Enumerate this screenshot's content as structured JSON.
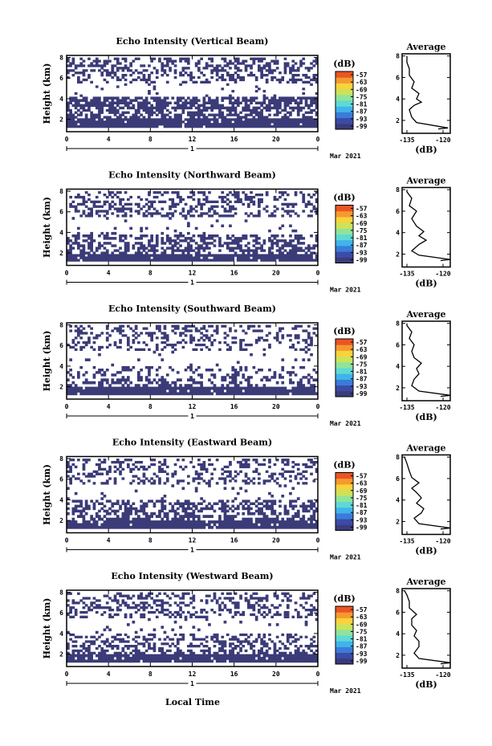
{
  "colors": {
    "echo": "#3b3b78",
    "colorbar": [
      "#3b3b78",
      "#3b4ba8",
      "#3a7cd8",
      "#41b3ec",
      "#5fd9d5",
      "#8fe49a",
      "#cde25a",
      "#f7d33c",
      "#f59a2e",
      "#ec5424"
    ]
  },
  "shared": {
    "x_ticks": [
      "0",
      "4",
      "8",
      "12",
      "16",
      "20",
      "0"
    ],
    "x_range": [
      0,
      24
    ],
    "day_label": "1",
    "month_label": "Mar 2021",
    "y_label": "Height (km)",
    "y_ticks": [
      "2",
      "4",
      "6",
      "8"
    ],
    "y_range": [
      0.8,
      8.2
    ],
    "cb_unit": "(dB)",
    "cb_ticks": [
      "-57",
      "-63",
      "-69",
      "-75",
      "-81",
      "-87",
      "-93",
      "-99"
    ],
    "avg_title": "Average",
    "avg_xticks": [
      "-135",
      "-120"
    ],
    "avg_xrange": [
      -137,
      -117
    ],
    "avg_xlabel": "(dB)",
    "avg_yticks": [
      "2",
      "4",
      "6",
      "8"
    ],
    "x_axis_label": "Local Time"
  },
  "chart_data": [
    {
      "type": "heatmap",
      "title": "Echo Intensity (Vertical Beam)",
      "echo_bands": [
        {
          "bottom": 1.2,
          "top": 2.1,
          "coverage": 0.95
        },
        {
          "bottom": 2.1,
          "top": 3.0,
          "coverage": 0.55
        },
        {
          "bottom": 3.0,
          "top": 4.2,
          "coverage": 0.7
        },
        {
          "bottom": 4.2,
          "top": 5.5,
          "coverage": 0.05
        },
        {
          "bottom": 5.5,
          "top": 8.0,
          "coverage": 0.4
        }
      ],
      "average_profile": [
        [
          -122,
          1.2
        ],
        [
          -118,
          1.3
        ],
        [
          -131,
          1.8
        ],
        [
          -133,
          2.3
        ],
        [
          -134,
          3.0
        ],
        [
          -132,
          3.4
        ],
        [
          -129,
          3.7
        ],
        [
          -131,
          4.0
        ],
        [
          -130,
          4.5
        ],
        [
          -133,
          5.0
        ],
        [
          -132,
          5.6
        ],
        [
          -134,
          6.2
        ],
        [
          -134,
          6.8
        ],
        [
          -135,
          7.4
        ],
        [
          -135,
          8.0
        ]
      ]
    },
    {
      "type": "heatmap",
      "title": "Echo Intensity (Northward Beam)",
      "echo_bands": [
        {
          "bottom": 1.2,
          "top": 1.9,
          "coverage": 0.95
        },
        {
          "bottom": 1.9,
          "top": 2.6,
          "coverage": 0.5
        },
        {
          "bottom": 2.6,
          "top": 3.8,
          "coverage": 0.5
        },
        {
          "bottom": 3.8,
          "top": 5.5,
          "coverage": 0.08
        },
        {
          "bottom": 5.5,
          "top": 8.0,
          "coverage": 0.35
        }
      ],
      "average_profile": [
        [
          -121,
          1.4
        ],
        [
          -117,
          1.5
        ],
        [
          -130,
          1.9
        ],
        [
          -133,
          2.3
        ],
        [
          -130,
          2.9
        ],
        [
          -127,
          3.3
        ],
        [
          -130,
          3.7
        ],
        [
          -128,
          4.1
        ],
        [
          -131,
          4.6
        ],
        [
          -133,
          5.3
        ],
        [
          -131,
          6.0
        ],
        [
          -134,
          6.5
        ],
        [
          -133,
          7.2
        ],
        [
          -135,
          7.8
        ],
        [
          -135,
          8.0
        ]
      ]
    },
    {
      "type": "heatmap",
      "title": "Echo Intensity (Southward Beam)",
      "echo_bands": [
        {
          "bottom": 1.2,
          "top": 2.0,
          "coverage": 0.95
        },
        {
          "bottom": 2.0,
          "top": 2.8,
          "coverage": 0.45
        },
        {
          "bottom": 2.8,
          "top": 4.0,
          "coverage": 0.25
        },
        {
          "bottom": 4.0,
          "top": 5.5,
          "coverage": 0.05
        },
        {
          "bottom": 5.5,
          "top": 8.0,
          "coverage": 0.3
        }
      ],
      "average_profile": [
        [
          -121,
          1.2
        ],
        [
          -117,
          1.3
        ],
        [
          -130,
          1.7
        ],
        [
          -133,
          2.2
        ],
        [
          -132,
          2.8
        ],
        [
          -130,
          3.3
        ],
        [
          -131,
          3.8
        ],
        [
          -129,
          4.3
        ],
        [
          -132,
          4.8
        ],
        [
          -133,
          5.4
        ],
        [
          -132,
          6.0
        ],
        [
          -134,
          6.6
        ],
        [
          -133,
          7.2
        ],
        [
          -135,
          7.8
        ],
        [
          -135,
          8.0
        ]
      ]
    },
    {
      "type": "heatmap",
      "title": "Echo Intensity (Eastward Beam)",
      "echo_bands": [
        {
          "bottom": 1.2,
          "top": 2.0,
          "coverage": 0.95
        },
        {
          "bottom": 2.0,
          "top": 2.8,
          "coverage": 0.5
        },
        {
          "bottom": 2.8,
          "top": 4.0,
          "coverage": 0.45
        },
        {
          "bottom": 4.0,
          "top": 5.5,
          "coverage": 0.06
        },
        {
          "bottom": 5.5,
          "top": 8.0,
          "coverage": 0.3
        }
      ],
      "average_profile": [
        [
          -121,
          1.3
        ],
        [
          -117,
          1.4
        ],
        [
          -130,
          1.8
        ],
        [
          -132,
          2.3
        ],
        [
          -129,
          2.8
        ],
        [
          -128,
          3.2
        ],
        [
          -131,
          3.7
        ],
        [
          -129,
          4.2
        ],
        [
          -131,
          4.7
        ],
        [
          -133,
          5.1
        ],
        [
          -130,
          5.6
        ],
        [
          -133,
          6.1
        ],
        [
          -134,
          6.7
        ],
        [
          -135,
          7.4
        ],
        [
          -136,
          8.0
        ]
      ]
    },
    {
      "type": "heatmap",
      "title": "Echo Intensity (Westward Beam)",
      "echo_bands": [
        {
          "bottom": 1.2,
          "top": 2.0,
          "coverage": 0.95
        },
        {
          "bottom": 2.0,
          "top": 2.9,
          "coverage": 0.5
        },
        {
          "bottom": 2.9,
          "top": 4.0,
          "coverage": 0.35
        },
        {
          "bottom": 4.0,
          "top": 5.5,
          "coverage": 0.06
        },
        {
          "bottom": 5.5,
          "top": 8.0,
          "coverage": 0.35
        }
      ],
      "average_profile": [
        [
          -121,
          1.2
        ],
        [
          -117,
          1.3
        ],
        [
          -130,
          1.7
        ],
        [
          -132,
          2.2
        ],
        [
          -130,
          2.8
        ],
        [
          -130,
          3.3
        ],
        [
          -132,
          3.8
        ],
        [
          -131,
          4.3
        ],
        [
          -133,
          4.8
        ],
        [
          -133,
          5.4
        ],
        [
          -131,
          5.8
        ],
        [
          -134,
          6.4
        ],
        [
          -134,
          7.0
        ],
        [
          -135,
          7.6
        ],
        [
          -136,
          8.0
        ]
      ]
    }
  ]
}
